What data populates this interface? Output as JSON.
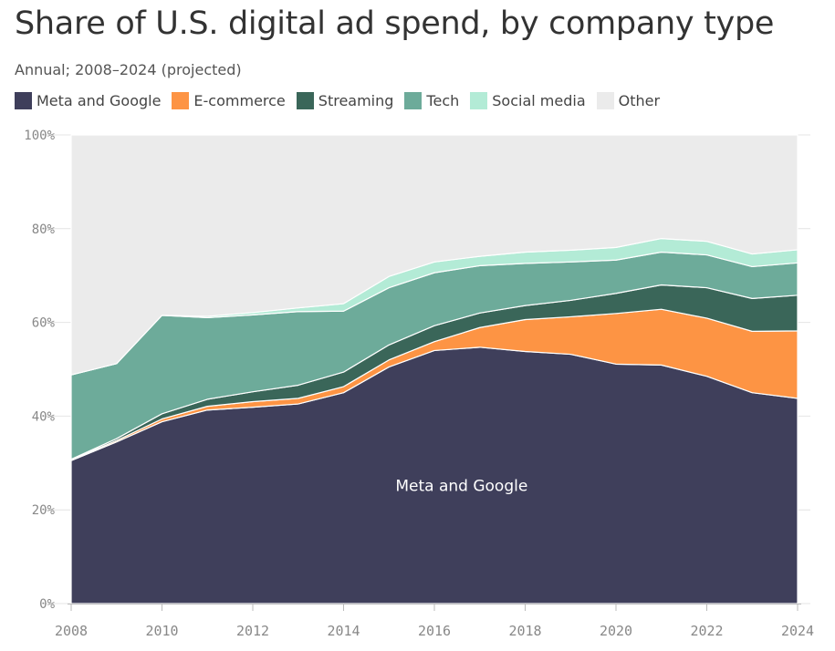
{
  "chart_data": {
    "type": "area",
    "stacked": true,
    "title": "Share of U.S. digital ad spend, by company type",
    "subtitle": "Annual; 2008–2024 (projected)",
    "x": [
      2008,
      2009,
      2010,
      2011,
      2012,
      2013,
      2014,
      2015,
      2016,
      2017,
      2018,
      2019,
      2020,
      2021,
      2022,
      2023,
      2024
    ],
    "x_ticks": [
      "2008",
      "2010",
      "2012",
      "2014",
      "2016",
      "2018",
      "2020",
      "2022",
      "2024"
    ],
    "y_ticks": [
      "0%",
      "20%",
      "40%",
      "60%",
      "80%",
      "100%"
    ],
    "ylim": [
      0,
      100
    ],
    "grid": true,
    "legend_position": "top",
    "series": [
      {
        "name": "Meta and Google",
        "color": "#3f3f5b",
        "values": [
          30.5,
          34.5,
          38.8,
          41.3,
          41.9,
          42.6,
          45.0,
          50.5,
          54.0,
          54.7,
          53.8,
          53.2,
          51.1,
          50.9,
          48.5,
          45.0,
          43.8
        ]
      },
      {
        "name": "E-commerce",
        "color": "#fd9444",
        "values": [
          0.2,
          0.3,
          0.6,
          0.8,
          1.2,
          1.2,
          1.3,
          1.5,
          1.9,
          4.2,
          6.8,
          8.0,
          10.8,
          11.9,
          12.4,
          13.1,
          14.4
        ]
      },
      {
        "name": "Streaming",
        "color": "#3a6659",
        "values": [
          0.1,
          0.4,
          1.1,
          1.5,
          2.1,
          2.8,
          3.1,
          3.2,
          3.4,
          3.1,
          3.0,
          3.5,
          4.3,
          5.2,
          6.5,
          7.0,
          7.6
        ]
      },
      {
        "name": "Tech",
        "color": "#6dab9a",
        "values": [
          18.0,
          16.0,
          21.0,
          17.4,
          16.4,
          15.7,
          13.0,
          12.2,
          11.3,
          10.1,
          9.0,
          8.2,
          7.1,
          7.0,
          7.0,
          6.8,
          6.9
        ]
      },
      {
        "name": "Social media",
        "color": "#b3ebd6",
        "values": [
          0.0,
          0.0,
          0.0,
          0.3,
          0.5,
          0.8,
          1.6,
          2.4,
          2.3,
          2.0,
          2.4,
          2.5,
          2.7,
          2.9,
          2.9,
          2.7,
          2.8
        ]
      },
      {
        "name": "Other",
        "color": "#ebebeb",
        "values": [
          51.2,
          48.8,
          38.5,
          38.7,
          37.9,
          36.9,
          36.0,
          30.2,
          27.1,
          25.9,
          25.0,
          24.6,
          24.0,
          22.1,
          22.7,
          25.4,
          24.5
        ]
      }
    ],
    "annotations": [
      {
        "text": "Meta and Google",
        "series": "Meta and Google",
        "x": 2016.6,
        "y": 24,
        "color": "#ffffff"
      }
    ]
  }
}
